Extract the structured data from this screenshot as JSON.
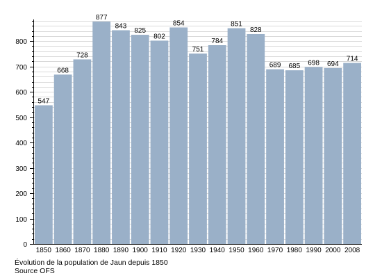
{
  "chart_data": {
    "type": "bar",
    "categories": [
      "1850",
      "1860",
      "1870",
      "1880",
      "1890",
      "1900",
      "1910",
      "1920",
      "1930",
      "1940",
      "1950",
      "1960",
      "1970",
      "1980",
      "1990",
      "2000",
      "2008"
    ],
    "values": [
      547,
      668,
      728,
      877,
      843,
      825,
      802,
      854,
      751,
      784,
      851,
      828,
      689,
      685,
      698,
      694,
      714
    ],
    "ylim": [
      0,
      880
    ],
    "yticks": [
      0,
      100,
      200,
      300,
      400,
      500,
      600,
      700,
      800
    ],
    "grid": true,
    "bar_color": "#9ab0c8",
    "grid_color": "#d9d9d9"
  },
  "caption": {
    "line1": "Évolution de la population de Jaun depuis 1850",
    "line2": "Source OFS"
  }
}
